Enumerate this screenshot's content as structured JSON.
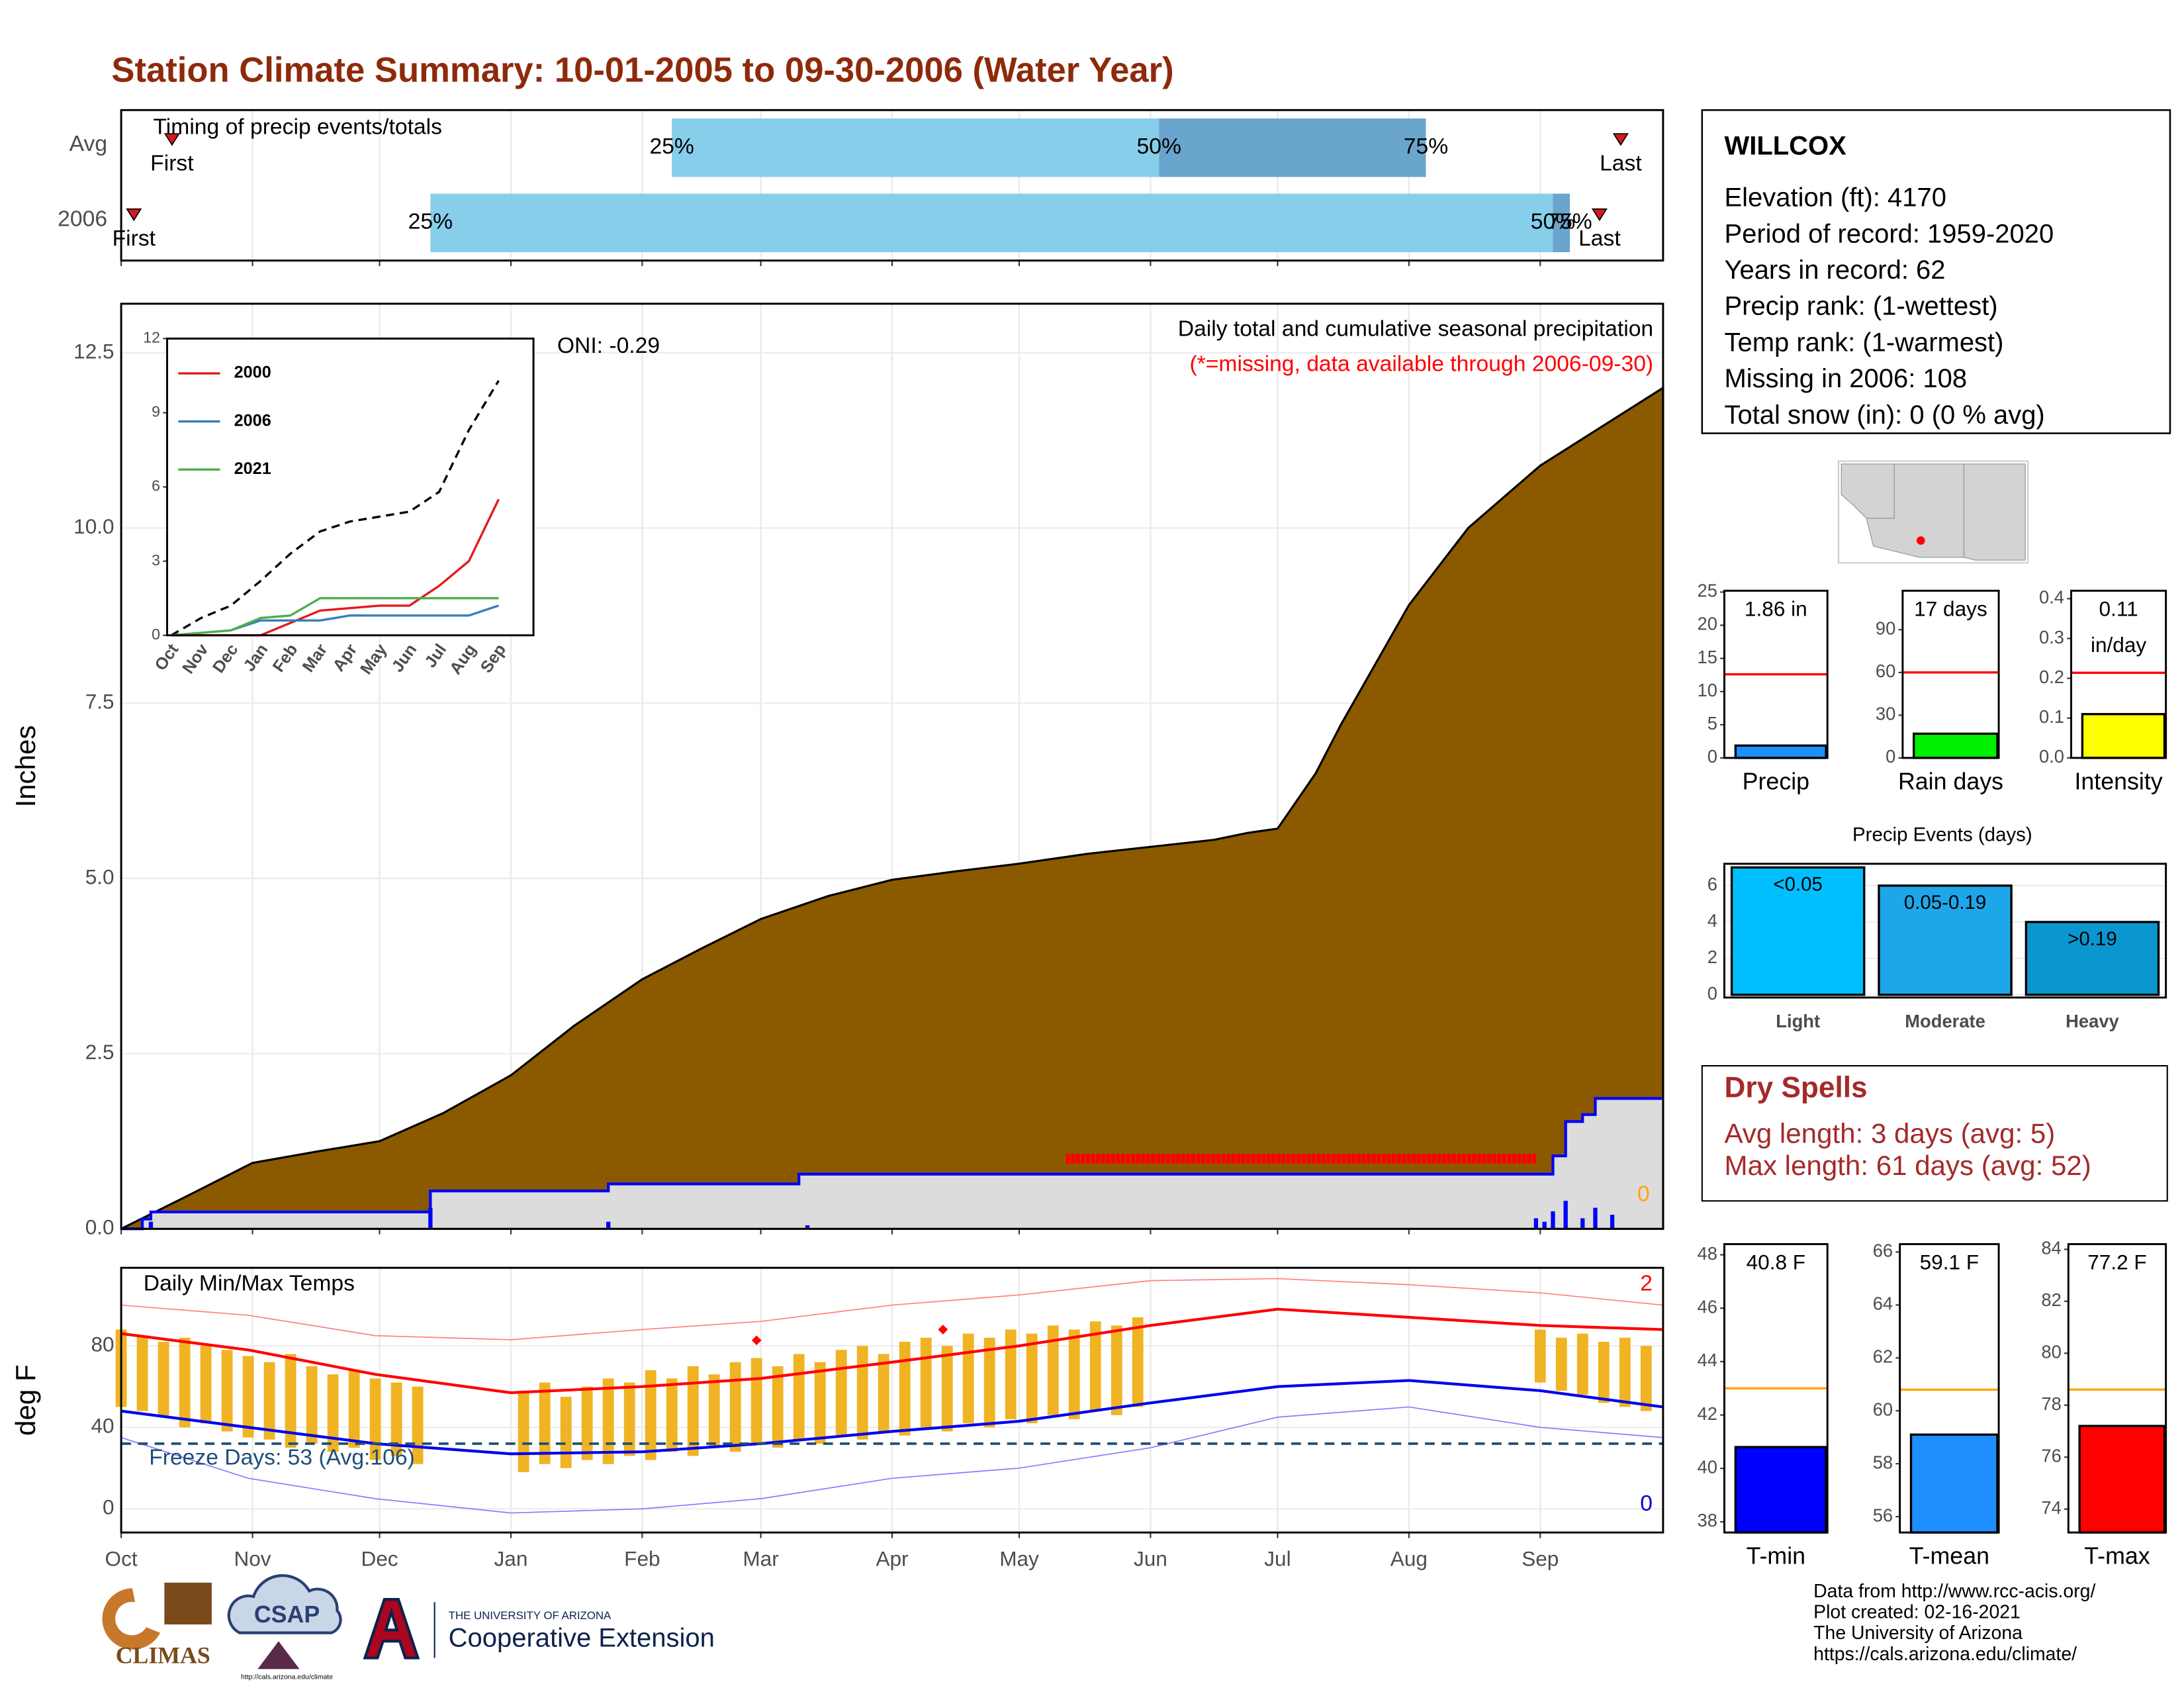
{
  "title": "Station Climate Summary: 10-01-2005 to 09-30-2006 (Water Year)",
  "chart_data": [
    {
      "type": "timeline",
      "title": "Timing of precip events/totals",
      "categories": [
        "Avg",
        "2006"
      ],
      "xlim": [
        0,
        364
      ],
      "xticks": [
        0,
        31,
        61,
        92,
        123,
        151,
        182,
        212,
        243,
        273,
        304,
        335
      ],
      "series": [
        {
          "name": "First",
          "kind": "marker",
          "color": "#d7191c",
          "values": [
            12,
            3
          ]
        },
        {
          "name": "25%",
          "kind": "quantile",
          "color": "#87ceeb",
          "values": [
            130,
            73
          ]
        },
        {
          "name": "50%",
          "kind": "quantile",
          "color": "#6aa5cd",
          "values": [
            245,
            338
          ]
        },
        {
          "name": "75%",
          "kind": "quantile",
          "values": [
            308,
            342
          ]
        },
        {
          "name": "Last",
          "kind": "marker",
          "color": "#d7191c",
          "values": [
            354,
            349
          ]
        }
      ]
    },
    {
      "type": "area",
      "ylabel": "Inches",
      "note": "Daily total and cumulative seasonal precipitation",
      "note2": "(*=missing, data available through 2006-09-30)",
      "oni": "ONI: -0.29",
      "corner_label": "0",
      "xlim": [
        0,
        364
      ],
      "xticks": [
        0,
        31,
        61,
        92,
        123,
        151,
        182,
        212,
        243,
        273,
        304,
        335
      ],
      "ylim": [
        0,
        13.2
      ],
      "yticks": [
        {
          "value": 0,
          "label": "0.0"
        },
        2.5,
        {
          "value": 5,
          "label": "5.0"
        },
        7.5,
        {
          "value": 10,
          "label": "10.0"
        },
        12.5
      ],
      "grid": true,
      "series": [
        {
          "kind": "area",
          "color": "#8b5a00",
          "x": [
            0,
            15,
            31,
            46,
            61,
            76,
            92,
            107,
            123,
            137,
            151,
            167,
            182,
            197,
            212,
            228,
            243,
            258,
            266,
            273,
            282,
            288,
            304,
            318,
            335,
            364
          ],
          "values": [
            0,
            0.45,
            0.94,
            1.1,
            1.25,
            1.65,
            2.19,
            2.9,
            3.56,
            4.0,
            4.42,
            4.75,
            4.98,
            5.1,
            5.21,
            5.35,
            5.45,
            5.55,
            5.65,
            5.71,
            6.5,
            7.2,
            8.9,
            10.0,
            10.89,
            12.0
          ]
        },
        {
          "kind": "step",
          "color": "#0000ff",
          "fill": "#dcdcdc",
          "x": [
            0,
            5,
            7,
            73,
            115,
            160,
            338,
            341,
            345,
            348,
            364
          ],
          "values": [
            0,
            0.14,
            0.24,
            0.54,
            0.64,
            0.78,
            1.04,
            1.53,
            1.63,
            1.86,
            1.86
          ]
        },
        {
          "kind": "bars",
          "color": "#0000ff",
          "x": [
            7,
            73,
            115,
            162,
            334,
            336,
            338,
            341,
            345,
            348,
            352
          ],
          "values": [
            0.1,
            0.3,
            0.1,
            0.05,
            0.15,
            0.1,
            0.25,
            0.4,
            0.15,
            0.3,
            0.2
          ]
        }
      ],
      "dry_spell": {
        "start": 223,
        "end": 334,
        "value": 1.0,
        "color": "#ff0000"
      }
    },
    {
      "type": "line",
      "categories": [
        "Oct",
        "Nov",
        "Dec",
        "Jan",
        "Feb",
        "Mar",
        "Apr",
        "May",
        "Jun",
        "Jul",
        "Aug",
        "Sep"
      ],
      "ylim": [
        0,
        12
      ],
      "yticks": [
        0,
        3,
        6,
        9,
        12
      ],
      "series": [
        {
          "color": "#000000",
          "dash": true,
          "values": [
            0,
            0.7,
            1.2,
            2.2,
            3.3,
            4.2,
            4.6,
            4.8,
            5.0,
            5.8,
            8.3,
            10.3
          ]
        },
        {
          "name": "2000",
          "color": "#e41a1c",
          "values": [
            0,
            0,
            0,
            0,
            0.5,
            1.0,
            1.1,
            1.2,
            1.2,
            2.0,
            3.0,
            5.5
          ]
        },
        {
          "name": "2006",
          "color": "#377eb8",
          "values": [
            0,
            0.1,
            0.2,
            0.6,
            0.6,
            0.6,
            0.8,
            0.8,
            0.8,
            0.8,
            0.8,
            1.2
          ]
        },
        {
          "name": "2021",
          "color": "#4daf4a",
          "values": [
            0,
            0.1,
            0.2,
            0.7,
            0.8,
            1.5,
            1.5,
            1.5,
            1.5,
            1.5,
            1.5,
            1.5
          ]
        }
      ]
    },
    {
      "type": "temperature",
      "title": "Daily Min/Max Temps",
      "ylabel": "deg F",
      "freeze_label": "Freeze Days: 53 (Avg:106)",
      "high_count": "2",
      "low_count": "0",
      "xlim": [
        0,
        364
      ],
      "xticks": [
        {
          "value": 0,
          "label": "Oct"
        },
        {
          "value": 31,
          "label": "Nov"
        },
        {
          "value": 61,
          "label": "Dec"
        },
        {
          "value": 92,
          "label": "Jan"
        },
        {
          "value": 123,
          "label": "Feb"
        },
        {
          "value": 151,
          "label": "Mar"
        },
        {
          "value": 182,
          "label": "Apr"
        },
        {
          "value": 212,
          "label": "May"
        },
        {
          "value": 243,
          "label": "Jun"
        },
        {
          "value": 273,
          "label": "Jul"
        },
        {
          "value": 304,
          "label": "Aug"
        },
        {
          "value": 335,
          "label": "Sep"
        }
      ],
      "ylim": [
        -11.6,
        118.3
      ],
      "yticks": [
        0,
        40,
        80
      ],
      "grid": true,
      "freeze_line": 32,
      "series": [
        {
          "kind": "line",
          "color": "#ff8080",
          "width": 0.8,
          "x": [
            0,
            30,
            60,
            92,
            123,
            151,
            182,
            212,
            243,
            273,
            304,
            335,
            364
          ],
          "values": [
            100,
            95,
            85,
            83,
            88,
            92,
            100,
            105,
            112,
            113,
            110,
            106,
            100
          ]
        },
        {
          "kind": "line",
          "color": "#8080ff",
          "width": 0.8,
          "x": [
            0,
            30,
            60,
            92,
            123,
            151,
            182,
            212,
            243,
            273,
            304,
            335,
            364
          ],
          "values": [
            35,
            15,
            5,
            -2,
            0,
            5,
            15,
            20,
            30,
            45,
            50,
            40,
            35
          ]
        },
        {
          "kind": "range",
          "color": "#f0b323",
          "x": [
            0,
            5,
            10,
            15,
            20,
            25,
            30,
            35,
            40,
            45,
            50,
            55,
            60,
            65,
            70,
            75,
            80,
            85,
            90,
            95,
            100,
            105,
            110,
            115,
            120,
            125,
            130,
            135,
            140,
            145,
            150,
            155,
            160,
            165,
            170,
            175,
            180,
            185,
            190,
            195,
            200,
            205,
            210,
            215,
            220,
            225,
            230,
            235,
            240,
            245,
            250,
            255,
            260,
            265,
            270,
            275,
            280,
            285,
            290,
            295,
            300,
            305,
            310,
            315,
            320,
            325,
            330,
            335,
            340,
            345,
            350,
            355,
            360
          ],
          "high": [
            88,
            85,
            82,
            84,
            80,
            78,
            75,
            72,
            76,
            70,
            66,
            68,
            64,
            62,
            60,
            null,
            null,
            null,
            null,
            58,
            62,
            55,
            60,
            64,
            62,
            68,
            64,
            70,
            66,
            72,
            74,
            70,
            76,
            72,
            78,
            80,
            76,
            82,
            84,
            80,
            86,
            84,
            88,
            86,
            90,
            88,
            92,
            90,
            94,
            null,
            null,
            null,
            null,
            null,
            null,
            null,
            null,
            null,
            null,
            null,
            null,
            null,
            null,
            null,
            null,
            null,
            null,
            88,
            84,
            86,
            82,
            84,
            80
          ],
          "low": [
            50,
            48,
            45,
            40,
            42,
            38,
            35,
            34,
            30,
            32,
            28,
            30,
            24,
            26,
            22,
            null,
            null,
            null,
            null,
            18,
            22,
            20,
            24,
            22,
            26,
            24,
            28,
            26,
            30,
            28,
            32,
            30,
            34,
            32,
            36,
            34,
            38,
            36,
            40,
            38,
            42,
            40,
            44,
            42,
            46,
            44,
            48,
            46,
            50,
            null,
            null,
            null,
            null,
            null,
            null,
            null,
            null,
            null,
            null,
            null,
            null,
            null,
            null,
            null,
            null,
            null,
            null,
            62,
            58,
            56,
            52,
            50,
            48
          ]
        },
        {
          "kind": "line",
          "color": "#ff0000",
          "width": 2,
          "x": [
            0,
            30,
            60,
            92,
            123,
            151,
            182,
            212,
            243,
            273,
            304,
            335,
            364
          ],
          "values": [
            86,
            78,
            66,
            57,
            60,
            64,
            72,
            80,
            90,
            98,
            94,
            90,
            88
          ]
        },
        {
          "kind": "line",
          "color": "#0000ee",
          "width": 2,
          "x": [
            0,
            30,
            60,
            92,
            123,
            151,
            182,
            212,
            243,
            273,
            304,
            335,
            364
          ],
          "values": [
            48,
            40,
            32,
            27,
            28,
            32,
            38,
            43,
            52,
            60,
            63,
            58,
            50
          ]
        },
        {
          "kind": "points",
          "color": "#ff0000",
          "x": [
            150,
            194
          ],
          "values": [
            82.7,
            88
          ]
        }
      ]
    },
    {
      "type": "bar",
      "categories": [
        "Precip"
      ],
      "values": [
        1.86
      ],
      "value_labels": [
        "1.86 in"
      ],
      "color": "#1e8fff",
      "avg": 12.6,
      "avg_color": "#ff0000",
      "ylim": [
        0,
        25.2
      ],
      "yticks": [
        0,
        5,
        10,
        15,
        20,
        25
      ]
    },
    {
      "type": "bar",
      "categories": [
        "Rain days"
      ],
      "values": [
        17
      ],
      "value_labels": [
        "17 days"
      ],
      "color": "#00ee00",
      "avg": 60,
      "avg_color": "#ff0000",
      "ylim": [
        0,
        117.4
      ],
      "yticks": [
        0,
        30,
        60,
        90
      ]
    },
    {
      "type": "bar",
      "categories": [
        "Intensity"
      ],
      "values": [
        0.11
      ],
      "value_labels": [
        "0.11 in/day"
      ],
      "color": "#ffff00",
      "avg": 0.214,
      "avg_color": "#ff0000",
      "ylim": [
        0,
        0.42
      ],
      "yticks": [
        {
          "value": 0,
          "label": "0.0"
        },
        0.1,
        0.2,
        0.3,
        0.4
      ]
    },
    {
      "type": "bar",
      "title": "Precip Events (days)",
      "categories": [
        "Light",
        "Moderate",
        "Heavy"
      ],
      "values": [
        7,
        6,
        4
      ],
      "value_labels": [
        "<0.05",
        "0.05-0.19",
        ">0.19"
      ],
      "colors": [
        "#00bfff",
        "#1ea6ea",
        "#0a97cf"
      ],
      "ylim": [
        -0.15,
        7.2
      ],
      "yticks": [
        0,
        2,
        4,
        6
      ],
      "grid": true
    },
    {
      "type": "bar",
      "categories": [
        "T-min"
      ],
      "values": [
        40.8
      ],
      "value_labels": [
        "40.8 F"
      ],
      "color": "#0000ff",
      "avg": 43.0,
      "avg_color": "#ffa500",
      "ylim": [
        37.6,
        48.4
      ],
      "yticks": [
        38,
        40,
        42,
        44,
        46,
        48
      ]
    },
    {
      "type": "bar",
      "categories": [
        "T-mean"
      ],
      "values": [
        59.1
      ],
      "value_labels": [
        "59.1 F"
      ],
      "color": "#1e8fff",
      "avg": 60.8,
      "avg_color": "#ffa500",
      "ylim": [
        55.4,
        66.3
      ],
      "yticks": [
        56,
        58,
        60,
        62,
        64,
        66
      ]
    },
    {
      "type": "bar",
      "categories": [
        "T-max"
      ],
      "values": [
        77.2
      ],
      "value_labels": [
        "77.2 F"
      ],
      "color": "#ff0000",
      "avg": 78.6,
      "avg_color": "#ffa500",
      "ylim": [
        73.1,
        84.2
      ],
      "yticks": [
        74,
        76,
        78,
        80,
        82,
        84
      ]
    }
  ],
  "station": {
    "name": "WILLCOX",
    "lines": [
      "Elevation (ft): 4170",
      "Period of record: 1959-2020",
      "Years in record: 62",
      "Precip rank:  (1-wettest)",
      "Temp rank:  (1-warmest)",
      "Missing in 2006: 108",
      "Total snow (in): 0 (0 % avg)"
    ]
  },
  "dry_spells": {
    "title": "Dry Spells",
    "lines": [
      "Avg length: 3 days (avg: 5)",
      "Max length: 61 days (avg: 52)"
    ]
  },
  "footer": [
    "Data from http://www.rcc-acis.org/",
    "Plot created: 02-16-2021",
    "The University of Arizona",
    "https://cals.arizona.edu/climate/"
  ],
  "logos": {
    "climas": "CLIMAS",
    "csap": "CSAP",
    "csap_url": "http://cals.arizona.edu/climate",
    "university": "THE UNIVERSITY OF ARIZONA",
    "extension": "Cooperative Extension"
  }
}
